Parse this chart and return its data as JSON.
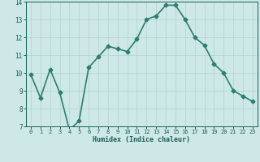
{
  "x": [
    0,
    1,
    2,
    3,
    4,
    5,
    6,
    7,
    8,
    9,
    10,
    11,
    12,
    13,
    14,
    15,
    16,
    17,
    18,
    19,
    20,
    21,
    22,
    23
  ],
  "y": [
    9.9,
    8.6,
    10.2,
    8.9,
    6.8,
    7.3,
    10.3,
    10.9,
    11.5,
    11.35,
    11.2,
    11.9,
    13.0,
    13.2,
    13.8,
    13.8,
    13.0,
    12.0,
    11.55,
    10.5,
    10.0,
    9.0,
    8.7,
    8.4
  ],
  "line_color": "#2e7d72",
  "bg_color": "#cde8e6",
  "grid_color": "#b0d5d3",
  "xlabel": "Humidex (Indice chaleur)",
  "ylim": [
    7,
    14
  ],
  "xlim_min": -0.5,
  "xlim_max": 23.5,
  "yticks": [
    7,
    8,
    9,
    10,
    11,
    12,
    13,
    14
  ],
  "xtick_labels": [
    "0",
    "1",
    "2",
    "3",
    "4",
    "5",
    "6",
    "7",
    "8",
    "9",
    "10",
    "11",
    "12",
    "13",
    "14",
    "15",
    "16",
    "17",
    "18",
    "19",
    "20",
    "21",
    "22",
    "23"
  ],
  "xlabel_color": "#1a5f5a",
  "tick_color": "#1a5f5a",
  "marker": "D",
  "marker_size": 2.5,
  "line_width": 1.2
}
